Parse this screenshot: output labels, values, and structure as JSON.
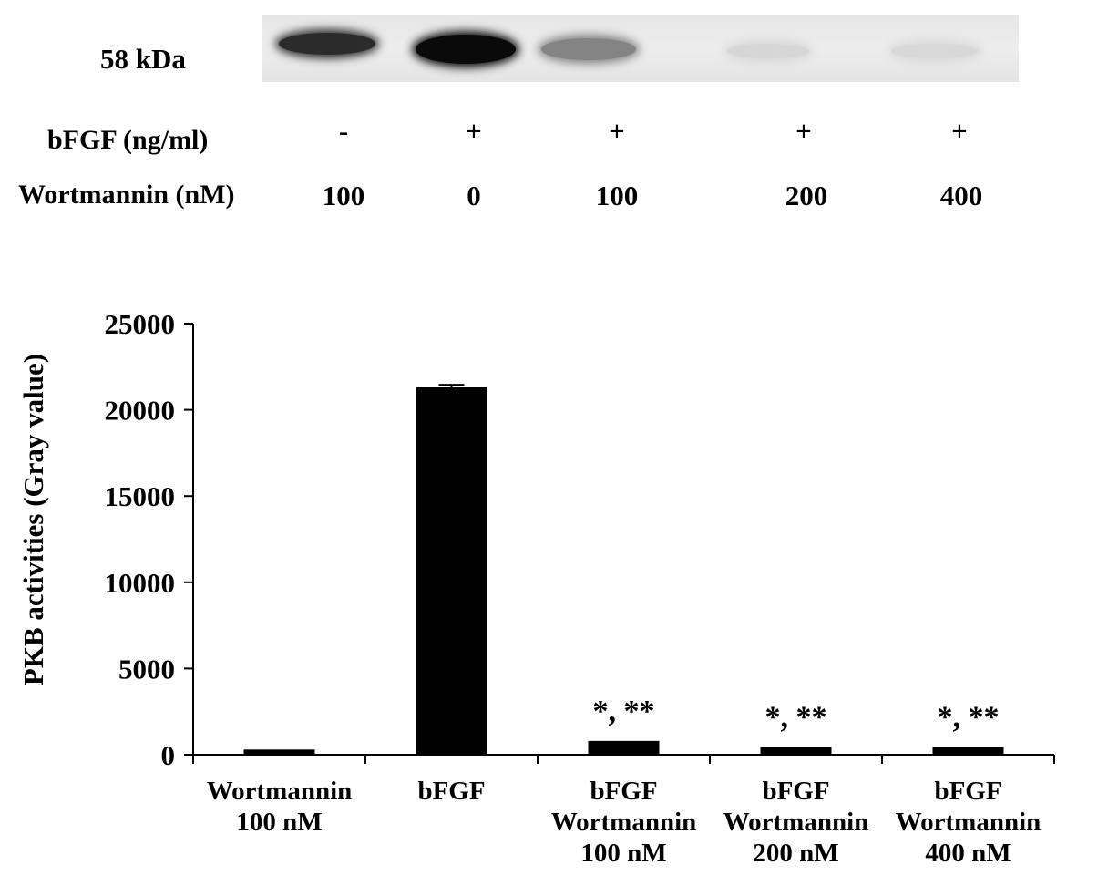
{
  "blot": {
    "mw_label": "58 kDa",
    "row1_label": "bFGF (ng/ml)",
    "row2_label": "Wortmannin (nM)",
    "bfgf": [
      "-",
      "+",
      "+",
      "+",
      "+"
    ],
    "wortmannin": [
      "100",
      "0",
      "100",
      "200",
      "400"
    ],
    "band_intensity": [
      0.85,
      1.0,
      0.45,
      0.08,
      0.07
    ]
  },
  "chart_data": {
    "type": "bar",
    "categories": [
      [
        "Wortmannin",
        "100 nM"
      ],
      [
        "bFGF"
      ],
      [
        "bFGF",
        "Wortmannin",
        "100 nM"
      ],
      [
        "bFGF",
        "Wortmannin",
        "200 nM"
      ],
      [
        "bFGF",
        "Wortmannin",
        "400 nM"
      ]
    ],
    "values": [
      300,
      21300,
      800,
      450,
      450
    ],
    "errors": [
      0,
      150,
      0,
      0,
      0
    ],
    "annotations": [
      "",
      "",
      "*, **",
      "*, **",
      "*, **"
    ],
    "ylabel": "PKB activities (Gray value)",
    "xlabel": "",
    "ylim": [
      0,
      25000
    ],
    "yticks": [
      "0",
      "5000",
      "10000",
      "15000",
      "20000",
      "25000"
    ],
    "grid": false,
    "bar_color": "#000000"
  }
}
